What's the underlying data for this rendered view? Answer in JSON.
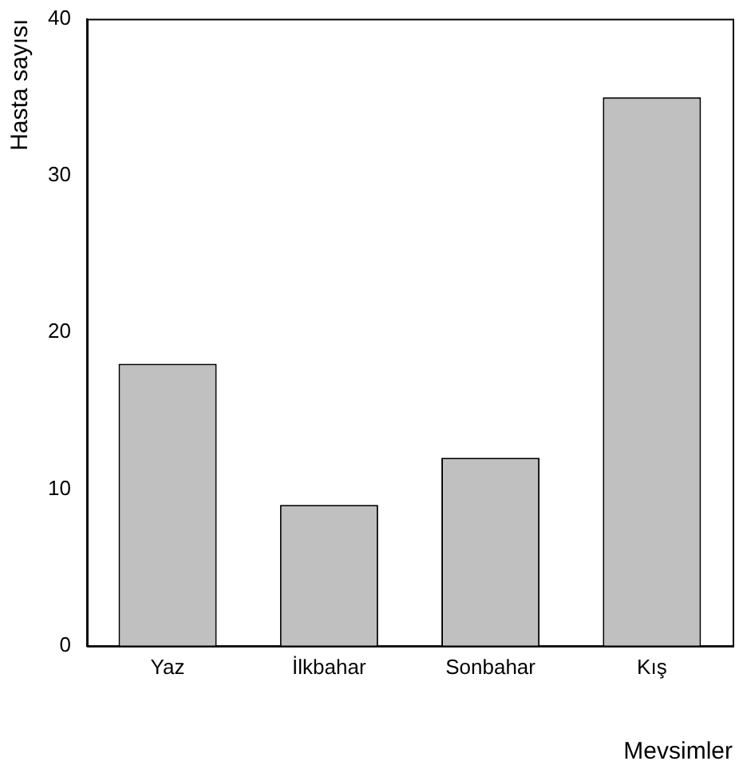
{
  "chart_data": {
    "type": "bar",
    "xlabel": "Mevsimler",
    "ylabel": "Hasta sayısı",
    "categories": [
      "Yaz",
      "İlkbahar",
      "Sonbahar",
      "Kış"
    ],
    "values": [
      18,
      9,
      12,
      35
    ],
    "color": "#c0c0c0",
    "ylim": [
      0,
      40
    ],
    "yticks": [
      0,
      10,
      20,
      30,
      40
    ],
    "grid": false,
    "legend": false
  }
}
